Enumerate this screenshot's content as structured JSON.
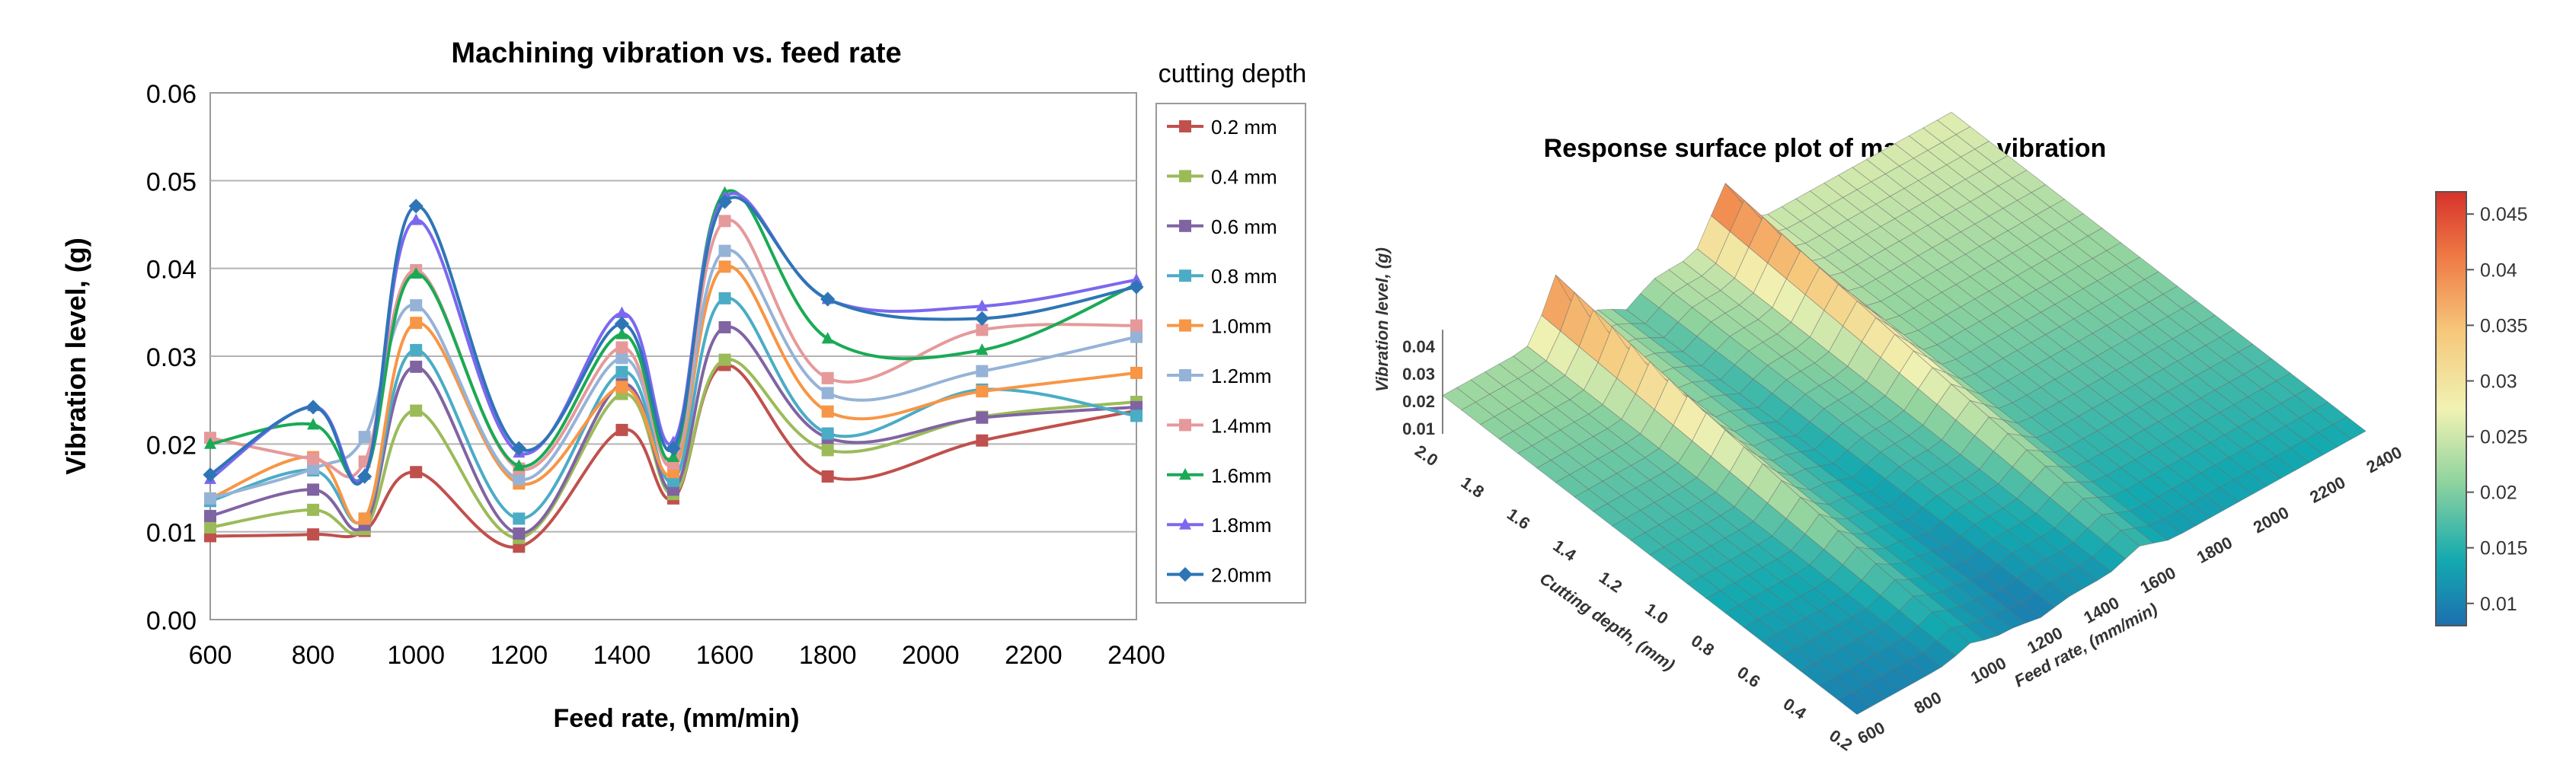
{
  "chart_data": [
    {
      "type": "line",
      "title": "Machining vibration  vs. feed rate",
      "xlabel": "Feed rate, (mm/min)",
      "ylabel": "Vibration level, (g)",
      "xlim": [
        600,
        2400
      ],
      "ylim": [
        0,
        0.06
      ],
      "xticks": [
        600,
        800,
        1000,
        1200,
        1400,
        1600,
        1800,
        2000,
        2200,
        2400
      ],
      "yticks": [
        "0.00",
        "0.01",
        "0.02",
        "0.03",
        "0.04",
        "0.05",
        "0.06"
      ],
      "grid": true,
      "legend_title": "cutting depth",
      "legend_position": "right",
      "x": [
        600,
        800,
        900,
        1000,
        1200,
        1400,
        1500,
        1600,
        1800,
        2100,
        2400
      ],
      "series": [
        {
          "name": "0.2 mm",
          "color": "#c0504d",
          "marker": "square",
          "values": [
            0.0095,
            0.0097,
            0.0101,
            0.0168,
            0.0083,
            0.0216,
            0.0138,
            0.029,
            0.0163,
            0.0204,
            0.0238
          ]
        },
        {
          "name": "0.4 mm",
          "color": "#9bbb59",
          "marker": "square",
          "values": [
            0.0105,
            0.0125,
            0.0103,
            0.0238,
            0.0093,
            0.0257,
            0.0143,
            0.0296,
            0.0193,
            0.0231,
            0.0248
          ]
        },
        {
          "name": "0.6 mm",
          "color": "#8064a2",
          "marker": "square",
          "values": [
            0.0118,
            0.0148,
            0.0108,
            0.0288,
            0.0098,
            0.0268,
            0.0148,
            0.0333,
            0.0207,
            0.023,
            0.0242
          ]
        },
        {
          "name": "0.8 mm",
          "color": "#4bacc6",
          "marker": "square",
          "values": [
            0.0135,
            0.017,
            0.0115,
            0.0307,
            0.0115,
            0.0282,
            0.0158,
            0.0366,
            0.0212,
            0.0262,
            0.0232
          ]
        },
        {
          "name": "1.0mm",
          "color": "#f79646",
          "marker": "square",
          "values": [
            0.0138,
            0.0185,
            0.0115,
            0.0338,
            0.0155,
            0.0265,
            0.0168,
            0.0402,
            0.0237,
            0.026,
            0.0281
          ]
        },
        {
          "name": "1.2mm",
          "color": "#95b3d7",
          "marker": "square",
          "values": [
            0.0138,
            0.0172,
            0.0208,
            0.0358,
            0.016,
            0.0298,
            0.0178,
            0.042,
            0.0258,
            0.0283,
            0.0322
          ]
        },
        {
          "name": "1.4mm",
          "color": "#e6999a",
          "marker": "square",
          "values": [
            0.0207,
            0.0183,
            0.018,
            0.0398,
            0.0172,
            0.031,
            0.0178,
            0.0454,
            0.0275,
            0.033,
            0.0335
          ]
        },
        {
          "name": "1.6mm",
          "color": "#1aaa55",
          "marker": "triangle",
          "values": [
            0.02,
            0.0222,
            0.0165,
            0.0394,
            0.0175,
            0.0325,
            0.0185,
            0.0486,
            0.032,
            0.0307,
            0.0382
          ]
        },
        {
          "name": "1.8mm",
          "color": "#7b68ee",
          "marker": "triangle",
          "values": [
            0.016,
            0.0243,
            0.0165,
            0.0455,
            0.019,
            0.0349,
            0.0202,
            0.0481,
            0.0365,
            0.0357,
            0.0387
          ]
        },
        {
          "name": "2.0mm",
          "color": "#2e75b6",
          "marker": "diamond",
          "values": [
            0.0165,
            0.0242,
            0.0163,
            0.0471,
            0.0195,
            0.0337,
            0.0195,
            0.0476,
            0.0365,
            0.0343,
            0.0379
          ]
        }
      ]
    },
    {
      "type": "surface",
      "title": "Response surface plot of machining vibration",
      "xlabel": "Feed rate, (mm/min)",
      "ylabel": "Cutting depth, (mm)",
      "zlabel": "Vibration level, (g)",
      "x_ticks": [
        "800",
        "1000",
        "1200",
        "1400",
        "1600",
        "1800",
        "2000",
        "2200",
        "2400"
      ],
      "x_first_tick": "600",
      "y_ticks": [
        "0.2",
        "0.4",
        "0.6",
        "0.8",
        "1.0",
        "1.2",
        "1.4",
        "1.6",
        "1.8",
        "2.0"
      ],
      "z_ticks": [
        "0.01",
        "0.02",
        "0.03",
        "0.04"
      ],
      "colorbar_ticks": [
        "0.01",
        "0.015",
        "0.02",
        "0.025",
        "0.03",
        "0.035",
        "0.04",
        "0.045"
      ],
      "colorbar_range": [
        0.008,
        0.047
      ],
      "peaks_feed_rate": [
        1000,
        1600
      ],
      "z_range": [
        0.008,
        0.047
      ]
    }
  ]
}
